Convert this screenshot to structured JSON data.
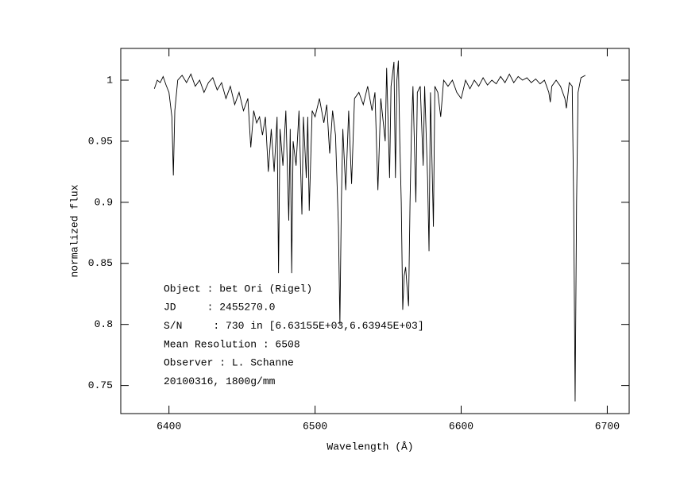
{
  "chart_data": {
    "type": "line",
    "x_label": "Wavelength (Å)",
    "y_label": "normalized flux",
    "xlim": [
      6367,
      6715
    ],
    "ylim": [
      0.727,
      1.026
    ],
    "xticks": [
      6400,
      6500,
      6600,
      6700
    ],
    "yticks": [
      0.75,
      0.8,
      0.85,
      0.9,
      0.95,
      1
    ],
    "annotations": [
      "Object : bet Ori (Rigel)",
      "JD     : 2455270.0",
      "S/N     : 730 in [6.63155E+03,6.63945E+03]",
      "Mean Resolution : 6508",
      "Observer : L. Schanne",
      "20100316, 1800g/mm"
    ],
    "x": [
      6390,
      6392,
      6394,
      6396,
      6398,
      6400,
      6402,
      6403,
      6404,
      6406,
      6409,
      6412,
      6415,
      6418,
      6421,
      6424,
      6427,
      6430,
      6433,
      6436,
      6439,
      6442,
      6445,
      6448,
      6451,
      6454,
      6456,
      6458,
      6460,
      6462,
      6464,
      6466,
      6468,
      6470,
      6472,
      6474,
      6475,
      6476,
      6478,
      6480,
      6482,
      6483,
      6484,
      6485,
      6487,
      6489,
      6491,
      6492,
      6494,
      6495,
      6496,
      6498,
      6500,
      6503,
      6506,
      6508,
      6510,
      6512,
      6514,
      6516,
      6517,
      6518,
      6519,
      6521,
      6523,
      6525,
      6527,
      6530,
      6533,
      6536,
      6539,
      6541,
      6543,
      6545,
      6548,
      6549,
      6551,
      6552,
      6554,
      6555,
      6556,
      6557,
      6558,
      6559,
      6560,
      6561,
      6562,
      6563,
      6564,
      6565,
      6566,
      6567,
      6569,
      6570,
      6572,
      6574,
      6575,
      6577,
      6578,
      6579,
      6581,
      6582,
      6584,
      6586,
      6588,
      6591,
      6594,
      6597,
      6600,
      6603,
      6606,
      6609,
      6612,
      6615,
      6618,
      6621,
      6624,
      6627,
      6630,
      6633,
      6636,
      6639,
      6642,
      6645,
      6648,
      6651,
      6654,
      6657,
      6660,
      6661,
      6662,
      6665,
      6668,
      6671,
      6672,
      6674,
      6676,
      6677,
      6678,
      6679,
      6680,
      6682,
      6685
    ],
    "series": [
      {
        "name": "flux",
        "color": "#000000",
        "values": [
          0.993,
          1.0,
          0.998,
          1.003,
          0.996,
          0.99,
          0.97,
          0.922,
          0.975,
          1.0,
          1.004,
          0.998,
          1.005,
          0.995,
          1.0,
          0.99,
          0.998,
          1.002,
          0.992,
          0.998,
          0.985,
          0.995,
          0.98,
          0.99,
          0.975,
          0.985,
          0.945,
          0.975,
          0.965,
          0.97,
          0.955,
          0.97,
          0.925,
          0.96,
          0.925,
          0.97,
          0.842,
          0.96,
          0.93,
          0.975,
          0.885,
          0.96,
          0.842,
          0.95,
          0.93,
          0.975,
          0.89,
          0.97,
          0.92,
          0.97,
          0.893,
          0.975,
          0.97,
          0.985,
          0.965,
          0.98,
          0.94,
          0.975,
          0.955,
          0.88,
          0.8,
          0.9,
          0.96,
          0.91,
          0.975,
          0.915,
          0.985,
          0.99,
          0.98,
          0.995,
          0.975,
          0.99,
          0.91,
          0.985,
          0.95,
          1.01,
          0.92,
          0.995,
          1.015,
          0.92,
          1.0,
          1.016,
          0.95,
          0.9,
          0.812,
          0.84,
          0.847,
          0.83,
          0.815,
          0.9,
          0.96,
          0.995,
          0.9,
          0.99,
          0.995,
          0.93,
          0.995,
          0.92,
          0.86,
          0.99,
          0.88,
          0.995,
          0.99,
          0.97,
          1.0,
          0.995,
          1.0,
          0.99,
          0.985,
          1.0,
          0.993,
          1.0,
          0.995,
          1.002,
          0.996,
          1.0,
          0.997,
          1.003,
          0.998,
          1.005,
          0.998,
          1.003,
          1.0,
          1.002,
          0.998,
          1.001,
          0.997,
          1.0,
          0.99,
          0.982,
          0.995,
          1.0,
          0.995,
          0.985,
          0.977,
          0.998,
          0.995,
          0.9,
          0.737,
          0.9,
          0.99,
          1.002,
          1.004
        ]
      }
    ]
  }
}
